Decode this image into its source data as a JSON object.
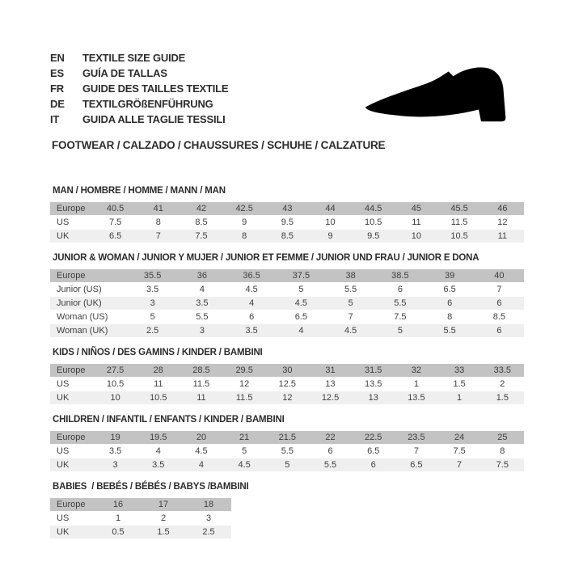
{
  "header": {
    "languages": [
      {
        "code": "EN",
        "text": "TEXTILE SIZE GUIDE"
      },
      {
        "code": "ES",
        "text": "GUÍA DE TALLAS"
      },
      {
        "code": "FR",
        "text": "GUIDE DES TAILLES TEXTILE"
      },
      {
        "code": "DE",
        "text": "TEXTILGRÖßENFÜHRUNG"
      },
      {
        "code": "IT",
        "text": "GUIDA ALLE TAGLIE TESSILI"
      }
    ],
    "shoe_icon": "dress-shoe-silhouette",
    "category_heading": "FOOTWEAR / CALZADO / CHAUSSURES / SCHUHE / CALZATURE"
  },
  "colors": {
    "header_row_bg": "#c3c3c3",
    "stripe_row_bg": "#efefef",
    "shoe_fill": "#000000",
    "text": "#2d2d2d"
  },
  "tables": [
    {
      "id": "man",
      "title": "MAN / HOMBRE / HOMME / MANN / MAN",
      "rows": [
        {
          "label": "Europe",
          "header": true,
          "values": [
            "40.5",
            "41",
            "42",
            "42.5",
            "43",
            "44",
            "44.5",
            "45",
            "45.5",
            "46"
          ]
        },
        {
          "label": "US",
          "values": [
            "7.5",
            "8",
            "8.5",
            "9",
            "9.5",
            "10",
            "10.5",
            "11",
            "11.5",
            "12"
          ]
        },
        {
          "label": "UK",
          "values": [
            "6.5",
            "7",
            "7.5",
            "8",
            "8.5",
            "9",
            "9.5",
            "10",
            "10.5",
            "11"
          ]
        }
      ]
    },
    {
      "id": "junior-woman",
      "title": "JUNIOR & WOMAN / JUNIOR Y MUJER / JUNIOR ET FEMME / JUNIOR UND FRAU / JUNIOR E DONA",
      "rows": [
        {
          "label": "Europe",
          "header": true,
          "values": [
            "35.5",
            "36",
            "36.5",
            "37.5",
            "38",
            "38.5",
            "39",
            "40"
          ]
        },
        {
          "label": "Junior (US)",
          "values": [
            "3.5",
            "4",
            "4.5",
            "5",
            "5.5",
            "6",
            "6.5",
            "7"
          ]
        },
        {
          "label": "Junior (UK)",
          "values": [
            "3",
            "3.5",
            "4",
            "4.5",
            "5",
            "5.5",
            "6",
            "6"
          ]
        },
        {
          "label": "Woman (US)",
          "values": [
            "5",
            "5.5",
            "6",
            "6.5",
            "7",
            "7.5",
            "8",
            "8.5"
          ]
        },
        {
          "label": "Woman (UK)",
          "values": [
            "2.5",
            "3",
            "3.5",
            "4",
            "4.5",
            "5",
            "5.5",
            "6"
          ]
        }
      ]
    },
    {
      "id": "kids",
      "title": "KIDS / NIÑOS / DES GAMINS / KINDER / BAMBINI",
      "rows": [
        {
          "label": "Europe",
          "header": true,
          "values": [
            "27.5",
            "28",
            "28.5",
            "29.5",
            "30",
            "31",
            "31.5",
            "32",
            "33",
            "33.5"
          ]
        },
        {
          "label": "US",
          "values": [
            "10.5",
            "11",
            "11.5",
            "12",
            "12.5",
            "13",
            "13.5",
            "1",
            "1.5",
            "2"
          ]
        },
        {
          "label": "UK",
          "values": [
            "10",
            "10.5",
            "11",
            "11.5",
            "12",
            "12.5",
            "13",
            "13.5",
            "1",
            "1.5"
          ]
        }
      ]
    },
    {
      "id": "children",
      "title": "CHILDREN / INFANTIL / ENFANTS / KINDER / BAMBINI",
      "rows": [
        {
          "label": "Europe",
          "header": true,
          "values": [
            "19",
            "19.5",
            "20",
            "21",
            "21.5",
            "22",
            "22.5",
            "23.5",
            "24",
            "25"
          ]
        },
        {
          "label": "US",
          "values": [
            "3.5",
            "4",
            "4.5",
            "5",
            "5.5",
            "6",
            "6.5",
            "7",
            "7.5",
            "8"
          ]
        },
        {
          "label": "UK",
          "values": [
            "3",
            "3.5",
            "4",
            "4.5",
            "5",
            "5.5",
            "6",
            "6.5",
            "7",
            "7.5"
          ]
        }
      ]
    },
    {
      "id": "babies",
      "title": "BABIES  / BEBÉS / BÉBÉS / BABYS /BAMBINI",
      "rows": [
        {
          "label": "Europe",
          "header": true,
          "values": [
            "16",
            "17",
            "18"
          ]
        },
        {
          "label": "US",
          "values": [
            "1",
            "2",
            "3"
          ]
        },
        {
          "label": "UK",
          "values": [
            "0.5",
            "1.5",
            "2.5"
          ]
        }
      ]
    }
  ]
}
